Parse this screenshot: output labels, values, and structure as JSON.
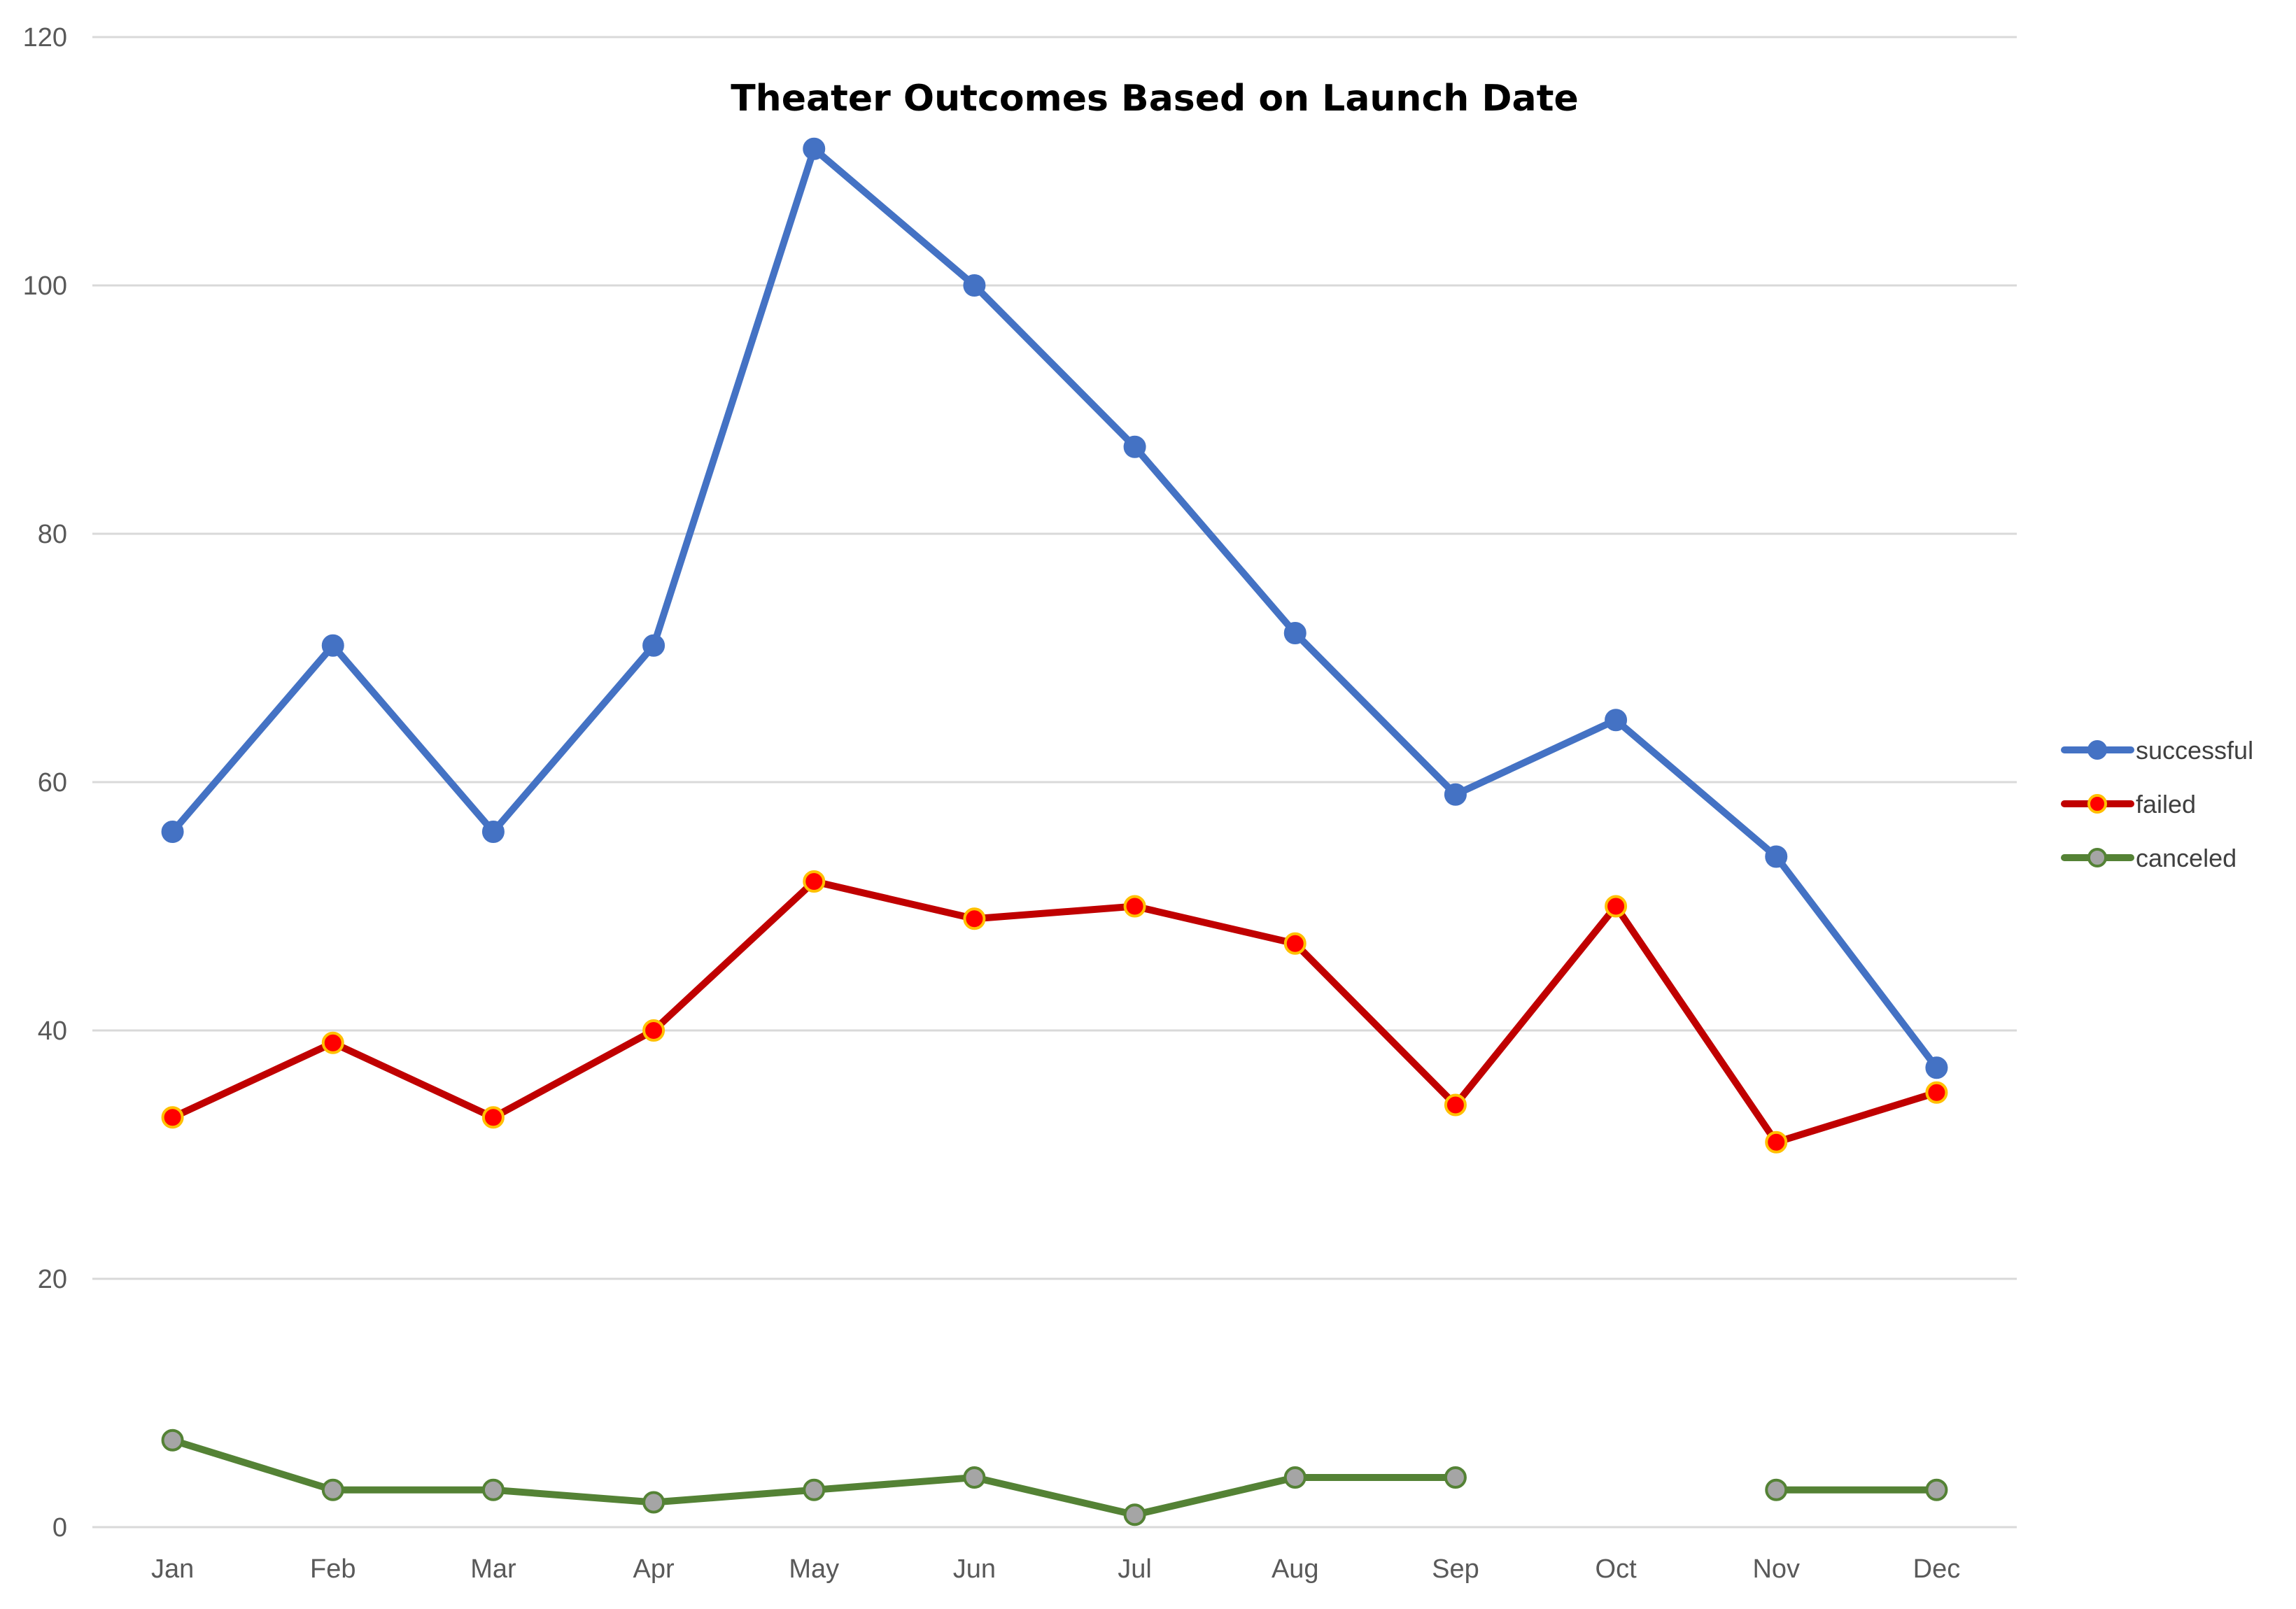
{
  "chart_data": {
    "type": "line",
    "title": "Theater Outcomes Based on Launch Date",
    "xlabel": "",
    "ylabel": "",
    "categories": [
      "Jan",
      "Feb",
      "Mar",
      "Apr",
      "May",
      "Jun",
      "Jul",
      "Aug",
      "Sep",
      "Oct",
      "Nov",
      "Dec"
    ],
    "ylim": [
      0,
      120
    ],
    "yticks": [
      0,
      20,
      40,
      60,
      80,
      100,
      120
    ],
    "grid": true,
    "legend_position": "right",
    "series": [
      {
        "name": "successful",
        "color": "#4472c4",
        "marker_fill": "#4472c4",
        "marker_stroke": "#4472c4",
        "values": [
          56,
          71,
          56,
          71,
          111,
          100,
          87,
          72,
          59,
          65,
          54,
          37
        ]
      },
      {
        "name": "failed",
        "color": "#c00000",
        "marker_fill": "#ff0000",
        "marker_stroke": "#ffc000",
        "values": [
          33,
          39,
          33,
          40,
          52,
          49,
          50,
          47,
          34,
          50,
          31,
          35
        ]
      },
      {
        "name": "canceled",
        "color": "#548235",
        "marker_fill": "#a5a5a5",
        "marker_stroke": "#548235",
        "values": [
          7,
          3,
          3,
          2,
          3,
          4,
          1,
          4,
          4,
          null,
          3,
          3
        ]
      }
    ]
  }
}
